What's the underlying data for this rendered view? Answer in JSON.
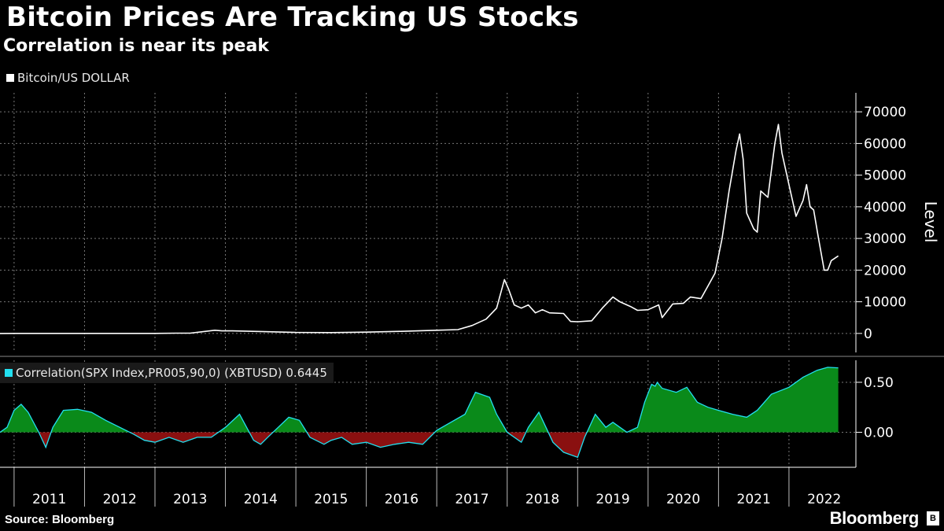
{
  "title": "Bitcoin Prices Are Tracking US Stocks",
  "subtitle": "Correlation is near its peak",
  "source": "Source: Bloomberg",
  "brand": "Bloomberg",
  "colors": {
    "background": "#000000",
    "price_line": "#ffffff",
    "corr_line": "#22e0f0",
    "positive_fill": "#0a8a1a",
    "negative_fill": "#8a1010",
    "grid": "#777777"
  },
  "chart_data": [
    {
      "type": "line",
      "legend": "Bitcoin/US DOLLAR",
      "ylabel": "Level",
      "yticks": [
        0,
        10000,
        20000,
        30000,
        40000,
        50000,
        60000,
        70000
      ],
      "ylim": [
        -6000,
        76000
      ],
      "xlim": [
        2010.8,
        2022.95
      ],
      "grid": true,
      "series": [
        {
          "name": "Bitcoin/US DOLLAR",
          "x": [
            2010.8,
            2011.0,
            2011.3,
            2011.45,
            2011.6,
            2012.0,
            2012.5,
            2013.0,
            2013.3,
            2013.5,
            2013.85,
            2013.95,
            2014.1,
            2014.5,
            2015.0,
            2015.5,
            2016.0,
            2016.5,
            2017.0,
            2017.3,
            2017.5,
            2017.7,
            2017.85,
            2017.96,
            2018.02,
            2018.1,
            2018.2,
            2018.3,
            2018.4,
            2018.5,
            2018.6,
            2018.8,
            2018.9,
            2019.0,
            2019.2,
            2019.35,
            2019.5,
            2019.6,
            2019.75,
            2019.85,
            2020.0,
            2020.15,
            2020.2,
            2020.35,
            2020.5,
            2020.6,
            2020.75,
            2020.85,
            2020.95,
            2021.05,
            2021.15,
            2021.25,
            2021.3,
            2021.35,
            2021.4,
            2021.5,
            2021.55,
            2021.6,
            2021.7,
            2021.8,
            2021.85,
            2021.9,
            2022.0,
            2022.1,
            2022.2,
            2022.25,
            2022.3,
            2022.35,
            2022.42,
            2022.5,
            2022.55,
            2022.6,
            2022.7
          ],
          "values": [
            0,
            1,
            5,
            15,
            8,
            5,
            7,
            13,
            100,
            90,
            1000,
            800,
            800,
            600,
            300,
            250,
            420,
            650,
            1000,
            1200,
            2500,
            4500,
            8000,
            17000,
            14000,
            9000,
            8000,
            9000,
            6500,
            7500,
            6500,
            6300,
            3800,
            3700,
            4000,
            8000,
            11500,
            10000,
            8500,
            7300,
            7500,
            9000,
            5000,
            9300,
            9500,
            11500,
            11000,
            15000,
            19000,
            30000,
            45000,
            58000,
            63000,
            55000,
            38000,
            33000,
            32000,
            45000,
            43000,
            60000,
            66000,
            57000,
            47000,
            37000,
            42000,
            47000,
            40000,
            39000,
            30000,
            20000,
            20000,
            23000,
            24500
          ]
        }
      ]
    },
    {
      "type": "area",
      "legend": "Correlation(SPX Index,PR005,90,0) (XBTUSD)",
      "last_value": "0.6445",
      "yticks": [
        0.0,
        0.5
      ],
      "ytick_labels": [
        "0.00",
        "0.50"
      ],
      "ylim": [
        -0.35,
        0.72
      ],
      "xlim": [
        2010.8,
        2022.95
      ],
      "grid": true,
      "series": [
        {
          "name": "Correlation(SPX Index,PR005,90,0) (XBTUSD)",
          "x": [
            2010.8,
            2010.9,
            2011.0,
            2011.1,
            2011.2,
            2011.35,
            2011.45,
            2011.55,
            2011.7,
            2011.9,
            2012.1,
            2012.3,
            2012.5,
            2012.7,
            2012.85,
            2013.0,
            2013.2,
            2013.4,
            2013.6,
            2013.8,
            2014.0,
            2014.2,
            2014.4,
            2014.5,
            2014.6,
            2014.75,
            2014.9,
            2015.05,
            2015.2,
            2015.4,
            2015.5,
            2015.65,
            2015.8,
            2016.0,
            2016.2,
            2016.4,
            2016.6,
            2016.8,
            2017.0,
            2017.2,
            2017.4,
            2017.55,
            2017.75,
            2017.85,
            2018.0,
            2018.2,
            2018.3,
            2018.45,
            2018.55,
            2018.65,
            2018.8,
            2019.0,
            2019.1,
            2019.25,
            2019.4,
            2019.5,
            2019.6,
            2019.7,
            2019.85,
            2019.95,
            2020.05,
            2020.1,
            2020.13,
            2020.2,
            2020.4,
            2020.55,
            2020.7,
            2020.85,
            2021.0,
            2021.2,
            2021.4,
            2021.55,
            2021.75,
            2022.0,
            2022.2,
            2022.4,
            2022.55,
            2022.7
          ],
          "values": [
            0,
            0.05,
            0.22,
            0.28,
            0.2,
            0.0,
            -0.15,
            0.05,
            0.22,
            0.23,
            0.2,
            0.12,
            0.05,
            -0.02,
            -0.08,
            -0.1,
            -0.05,
            -0.1,
            -0.05,
            -0.05,
            0.05,
            0.18,
            -0.08,
            -0.12,
            -0.05,
            0.05,
            0.15,
            0.12,
            -0.05,
            -0.12,
            -0.08,
            -0.05,
            -0.12,
            -0.1,
            -0.15,
            -0.12,
            -0.1,
            -0.12,
            0.02,
            0.1,
            0.18,
            0.4,
            0.35,
            0.18,
            0.0,
            -0.1,
            0.05,
            0.2,
            0.05,
            -0.1,
            -0.2,
            -0.25,
            -0.05,
            0.18,
            0.05,
            0.1,
            0.05,
            0.0,
            0.05,
            0.3,
            0.48,
            0.46,
            0.5,
            0.44,
            0.4,
            0.45,
            0.3,
            0.25,
            0.22,
            0.18,
            0.15,
            0.22,
            0.38,
            0.45,
            0.55,
            0.62,
            0.65,
            0.6445
          ]
        }
      ]
    }
  ],
  "xticks": [
    "2011",
    "2012",
    "2013",
    "2014",
    "2015",
    "2016",
    "2017",
    "2018",
    "2019",
    "2020",
    "2021",
    "2022"
  ],
  "xtick_centers": [
    2011.5,
    2012.5,
    2013.5,
    2014.5,
    2015.5,
    2016.5,
    2017.5,
    2018.5,
    2019.5,
    2020.5,
    2021.5,
    2022.5
  ],
  "year_boundaries": [
    2011,
    2012,
    2013,
    2014,
    2015,
    2016,
    2017,
    2018,
    2019,
    2020,
    2021,
    2022
  ]
}
